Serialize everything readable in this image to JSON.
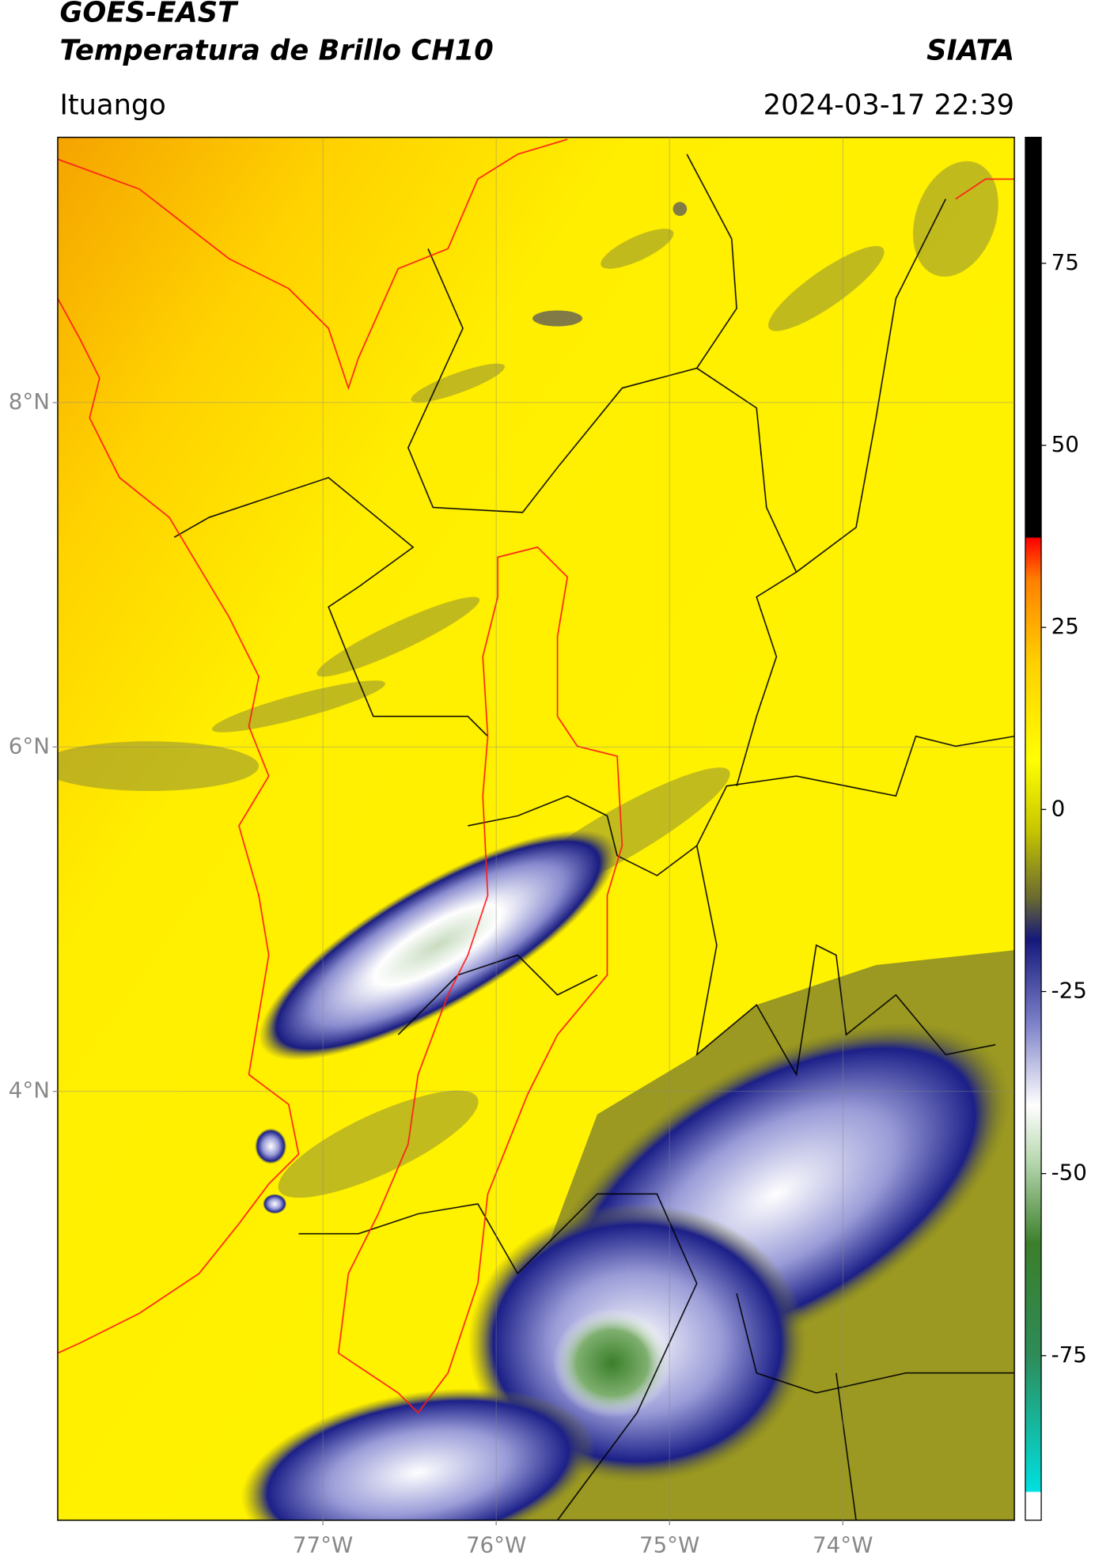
{
  "header": {
    "title": "GOES-EAST",
    "subtitle": "Temperatura de Brillo CH10",
    "source": "SIATA",
    "region": "Ituango",
    "datetime": "2024-03-17 22:39"
  },
  "map": {
    "xlim": [
      -78.53,
      -73.01
    ],
    "ylim": [
      1.51,
      9.54
    ],
    "xticks": [
      {
        "value": -77,
        "label": "77°W"
      },
      {
        "value": -76,
        "label": "76°W"
      },
      {
        "value": -75,
        "label": "75°W"
      },
      {
        "value": -74,
        "label": "74°W"
      }
    ],
    "yticks": [
      {
        "value": 8,
        "label": "8°N"
      },
      {
        "value": 6,
        "label": "6°N"
      },
      {
        "value": 4,
        "label": "4°N"
      }
    ]
  },
  "colorbar": {
    "lim": [
      -97.6,
      92.3
    ],
    "ticks": [
      75,
      50,
      25,
      0,
      -25,
      -50,
      -75
    ]
  }
}
